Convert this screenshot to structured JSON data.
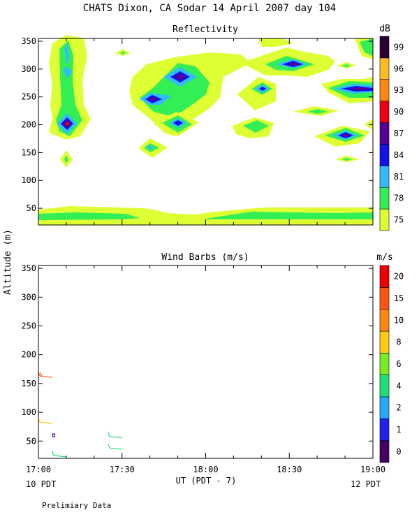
{
  "title": "CHATS Dixon, CA  Sodar  14 April 2007  day 104",
  "footnote": "Prelimiary Data",
  "shared_y_label": "Altitude  (m)",
  "chart_data": [
    {
      "type": "heatmap",
      "title": "Reflectivity",
      "colorbar_unit": "dB",
      "x_ticks": [
        "17:00",
        "17:30",
        "18:00",
        "18:30",
        "19:00"
      ],
      "xlim": [
        "17:00",
        "19:00"
      ],
      "y_ticks": [
        50,
        100,
        150,
        200,
        250,
        300,
        350
      ],
      "ylim": [
        20,
        355
      ],
      "colorbar": [
        {
          "label": "75",
          "color": "#ddff33"
        },
        {
          "label": "78",
          "color": "#33ee55"
        },
        {
          "label": "81",
          "color": "#33bbff"
        },
        {
          "label": "84",
          "color": "#1111ee"
        },
        {
          "label": "87",
          "color": "#550099"
        },
        {
          "label": "90",
          "color": "#ee0011"
        },
        {
          "label": "93",
          "color": "#ff8811"
        },
        {
          "label": "96",
          "color": "#ffbb22"
        },
        {
          "label": "99",
          "color": "#2a0033"
        }
      ],
      "cells": [
        {
          "t": "17:07",
          "z": 200,
          "level": 5
        },
        {
          "t": "17:07",
          "z": 325,
          "level": 2
        },
        {
          "t": "17:07",
          "z": 140,
          "level": 1
        },
        {
          "t": "17:39",
          "z": 160,
          "level": 4
        },
        {
          "t": "17:39",
          "z": 242,
          "level": 4
        },
        {
          "t": "17:50",
          "z": 282,
          "level": 4
        },
        {
          "t": "17:50",
          "z": 202,
          "level": 4
        },
        {
          "t": "18:20",
          "z": 262,
          "level": 3
        },
        {
          "t": "18:33",
          "z": 305,
          "level": 4
        },
        {
          "t": "18:50",
          "z": 220,
          "level": 1
        },
        {
          "t": "18:50",
          "z": 300,
          "level": 1
        },
        {
          "t": "18:50",
          "z": 180,
          "level": 5
        },
        {
          "t": "18:50",
          "z": 260,
          "level": 4
        }
      ],
      "grid": false
    },
    {
      "type": "scatter",
      "title": "Wind Barbs (m/s)",
      "colorbar_unit": "m/s",
      "x_ticks": [
        "17:00",
        "17:30",
        "18:00",
        "18:30",
        "19:00"
      ],
      "xlim": [
        "17:00",
        "19:00"
      ],
      "x_start_label": "10 PDT",
      "x_end_label": "12 PDT",
      "xlabel": "UT  (PDT - 7)",
      "y_ticks": [
        50,
        100,
        150,
        200,
        250,
        300,
        350
      ],
      "ylim": [
        20,
        355
      ],
      "colorbar": [
        {
          "label": "0",
          "color": "#440066"
        },
        {
          "label": "1",
          "color": "#2222ee"
        },
        {
          "label": "2",
          "color": "#22aaff"
        },
        {
          "label": "4",
          "color": "#22dd77"
        },
        {
          "label": "6",
          "color": "#77ee22"
        },
        {
          "label": "8",
          "color": "#ffcc11"
        },
        {
          "label": "10",
          "color": "#ff8811"
        },
        {
          "label": "15",
          "color": "#ff5511"
        },
        {
          "label": "20",
          "color": "#ee0000"
        }
      ],
      "barbs": [
        {
          "t": "17:00",
          "z": 163,
          "speed": 12,
          "color": "#ff5511"
        },
        {
          "t": "17:00",
          "z": 83,
          "speed": 8,
          "color": "#ffcc11"
        },
        {
          "t": "17:05",
          "z": 60,
          "speed": 0,
          "color": "#550099"
        },
        {
          "t": "17:05",
          "z": 25,
          "speed": 4,
          "color": "#22dd77"
        },
        {
          "t": "17:25",
          "z": 58,
          "speed": 4,
          "color": "#22dd77"
        },
        {
          "t": "17:25",
          "z": 38,
          "speed": 4,
          "color": "#22dd77"
        }
      ],
      "grid": false
    }
  ]
}
